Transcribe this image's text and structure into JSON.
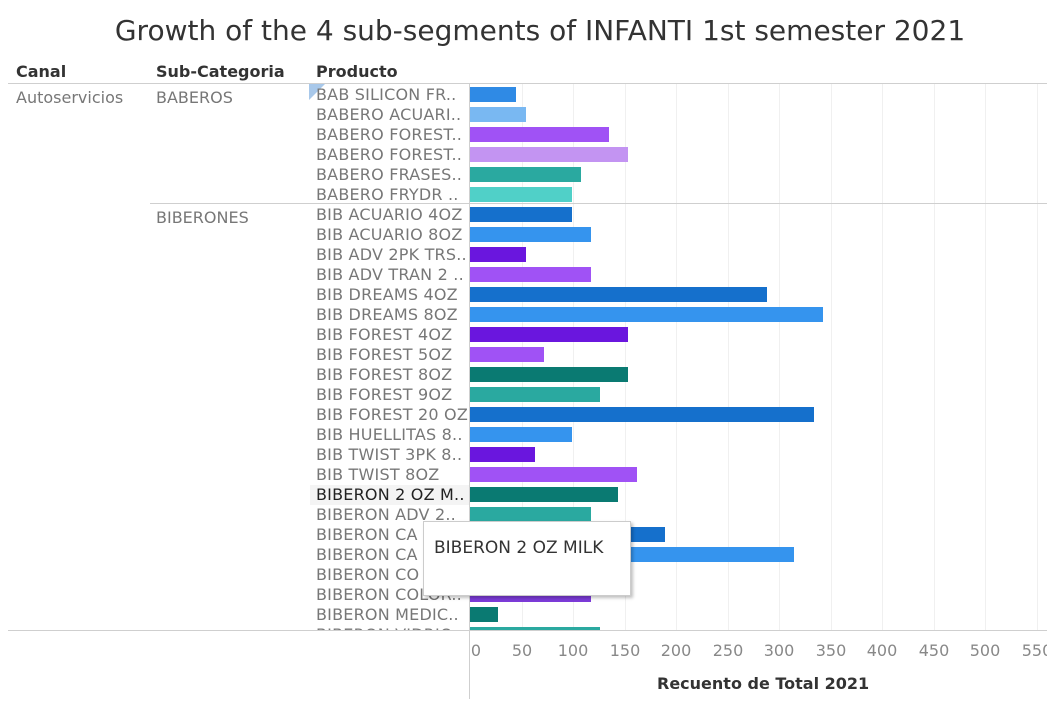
{
  "chart_data": {
    "type": "bar",
    "orientation": "horizontal",
    "title": "Growth of the 4 sub-segments of INFANTI 1st semester 2021",
    "columns": {
      "canal": "Canal",
      "subcategoria": "Sub-Categoria",
      "producto": "Producto"
    },
    "canal": "Autoservicios",
    "groups": [
      {
        "name": "BABEROS",
        "start": 0,
        "count": 6
      },
      {
        "name": "BIBERONES",
        "start": 6,
        "count": 22
      }
    ],
    "rows": [
      {
        "label": "BAB SILICON FR..",
        "value": 45,
        "color": "#2f8ae5"
      },
      {
        "label": "BABERO ACUARI..",
        "value": 54,
        "color": "#79b8f2"
      },
      {
        "label": "BABERO FOREST..",
        "value": 135,
        "color": "#a052f5"
      },
      {
        "label": "BABERO FOREST..",
        "value": 153,
        "color": "#c394f2"
      },
      {
        "label": "BABERO FRASES..",
        "value": 108,
        "color": "#2aa9a0"
      },
      {
        "label": "BABERO FRYDR ..",
        "value": 99,
        "color": "#50d0c8"
      },
      {
        "label": "BIB ACUARIO 4OZ",
        "value": 99,
        "color": "#1570cc"
      },
      {
        "label": "BIB ACUARIO 8OZ",
        "value": 117,
        "color": "#3594ee"
      },
      {
        "label": "BIB ADV 2PK TRS..",
        "value": 54,
        "color": "#6a16de"
      },
      {
        "label": "BIB ADV TRAN 2 ..",
        "value": 117,
        "color": "#a052f5"
      },
      {
        "label": "BIB DREAMS 4OZ",
        "value": 288,
        "color": "#1570cc"
      },
      {
        "label": "BIB DREAMS 8OZ",
        "value": 343,
        "color": "#3594ee"
      },
      {
        "label": "BIB FOREST 4OZ",
        "value": 153,
        "color": "#6a16de"
      },
      {
        "label": "BIB FOREST 5OZ",
        "value": 72,
        "color": "#a052f5"
      },
      {
        "label": "BIB FOREST 8OZ",
        "value": 153,
        "color": "#0a7a72"
      },
      {
        "label": "BIB FOREST 9OZ",
        "value": 126,
        "color": "#2aa9a0"
      },
      {
        "label": "BIB FOREST 20 OZ",
        "value": 334,
        "color": "#1570cc"
      },
      {
        "label": "BIB HUELLITAS 8..",
        "value": 99,
        "color": "#3594ee"
      },
      {
        "label": "BIB TWIST 3PK 8..",
        "value": 63,
        "color": "#6a16de"
      },
      {
        "label": "BIB TWIST 8OZ",
        "value": 162,
        "color": "#a052f5"
      },
      {
        "label": "BIBERON 2 OZ M..",
        "value": 144,
        "color": "#0a7a72"
      },
      {
        "label": "BIBERON ADV 2..",
        "value": 117,
        "color": "#2aa9a0"
      },
      {
        "label": "BIBERON CA",
        "value": 189,
        "color": "#1570cc"
      },
      {
        "label": "BIBERON CA",
        "value": 315,
        "color": "#3594ee"
      },
      {
        "label": "BIBERON CO",
        "value": 90,
        "color": "#6a16de"
      },
      {
        "label": "BIBERON COLOR..",
        "value": 117,
        "color": "#7c3bd8"
      },
      {
        "label": "BIBERON MEDIC..",
        "value": 27,
        "color": "#0a7a72"
      },
      {
        "label": "BIBERON VIDRIO..",
        "value": 126,
        "color": "#2aa9a0"
      }
    ],
    "selected_index": 20,
    "tooltip": "BIBERON 2 OZ MILK",
    "xlabel": "Recuento de Total 2021",
    "ylabel": "",
    "xlim": [
      0,
      550
    ],
    "xticks": [
      0,
      50,
      100,
      150,
      200,
      250,
      300,
      350,
      400,
      450,
      500,
      550
    ],
    "grid": true,
    "legend": "none"
  }
}
